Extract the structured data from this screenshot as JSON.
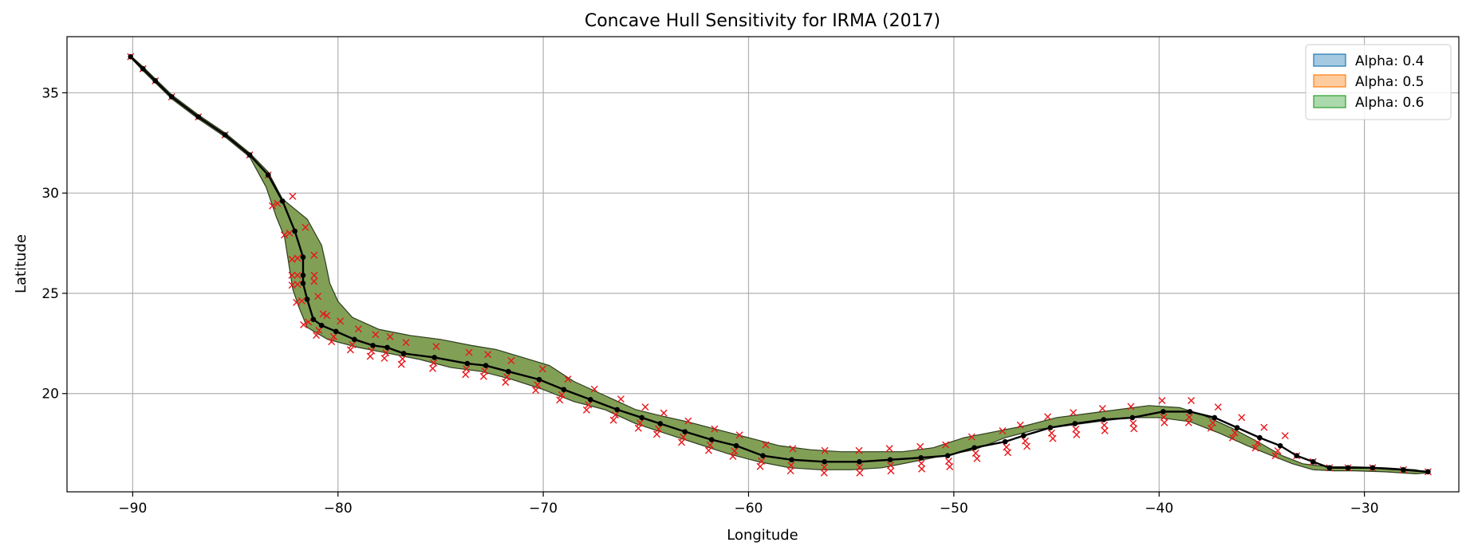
{
  "chart_data": {
    "type": "area",
    "title": "Concave Hull Sensitivity for IRMA (2017)",
    "xlabel": "Longitude",
    "ylabel": "Latitude",
    "xlim": [
      -93.2,
      -25.4
    ],
    "ylim": [
      15.1,
      37.8
    ],
    "xticks": [
      -90,
      -80,
      -70,
      -60,
      -50,
      -40,
      -30
    ],
    "yticks": [
      20,
      25,
      30,
      35
    ],
    "grid": true,
    "legend_placement": "top-right",
    "series": [
      {
        "name": "Alpha: 0.4",
        "color": "#1f77b4",
        "kind": "hull"
      },
      {
        "name": "Alpha: 0.5",
        "color": "#ff7f0e",
        "kind": "hull"
      },
      {
        "name": "Alpha: 0.6",
        "color": "#2ca02c",
        "kind": "hull"
      }
    ],
    "hull_fill_color": "#7f9f52",
    "track": {
      "color": "#000000",
      "x": [
        -90.1,
        -89.5,
        -88.9,
        -88.1,
        -86.8,
        -85.5,
        -84.3,
        -83.4,
        -82.7,
        -82.1,
        -81.7,
        -81.7,
        -81.7,
        -81.5,
        -81.2,
        -80.8,
        -80.1,
        -79.2,
        -78.3,
        -77.6,
        -76.8,
        -75.3,
        -73.7,
        -72.8,
        -71.7,
        -70.2,
        -69.0,
        -67.7,
        -66.4,
        -65.2,
        -64.3,
        -63.1,
        -61.8,
        -60.6,
        -59.3,
        -57.9,
        -56.3,
        -54.6,
        -53.1,
        -51.6,
        -50.3,
        -49.0,
        -47.5,
        -46.6,
        -45.3,
        -44.1,
        -42.7,
        -41.3,
        -39.8,
        -38.5,
        -37.3,
        -36.2,
        -35.1,
        -34.1,
        -33.3,
        -32.5,
        -31.7,
        -30.8,
        -29.6,
        -28.1,
        -26.9
      ],
      "y": [
        36.8,
        36.2,
        35.6,
        34.8,
        33.8,
        32.9,
        31.9,
        30.9,
        29.6,
        28.1,
        26.8,
        25.9,
        25.5,
        24.7,
        23.7,
        23.4,
        23.1,
        22.7,
        22.4,
        22.3,
        22.0,
        21.8,
        21.5,
        21.4,
        21.1,
        20.7,
        20.2,
        19.7,
        19.2,
        18.8,
        18.5,
        18.1,
        17.7,
        17.4,
        16.9,
        16.7,
        16.6,
        16.6,
        16.7,
        16.8,
        16.9,
        17.3,
        17.6,
        17.9,
        18.3,
        18.5,
        18.7,
        18.8,
        19.1,
        19.1,
        18.8,
        18.3,
        17.8,
        17.4,
        16.9,
        16.6,
        16.3,
        16.3,
        16.3,
        16.2,
        16.1
      ]
    },
    "hull": {
      "x": [
        -90.1,
        -89.5,
        -88.9,
        -88.1,
        -86.8,
        -85.5,
        -84.3,
        -83.4,
        -82.7,
        -81.5,
        -80.8,
        -80.6,
        -80.4,
        -80.0,
        -79.3,
        -78.0,
        -76.5,
        -75.0,
        -73.5,
        -72.3,
        -71.0,
        -69.7,
        -68.5,
        -67.0,
        -65.5,
        -64.3,
        -63.0,
        -61.5,
        -60.0,
        -58.5,
        -57.0,
        -55.5,
        -54.0,
        -52.5,
        -51.0,
        -49.5,
        -48.0,
        -46.5,
        -45.0,
        -43.5,
        -42.0,
        -40.5,
        -39.0,
        -37.8,
        -36.5,
        -35.2,
        -34.0,
        -33.0,
        -32.2,
        -31.5,
        -30.5,
        -29.0,
        -27.5,
        -26.9,
        -27.5,
        -29.0,
        -30.5,
        -31.5,
        -32.5,
        -33.5,
        -34.5,
        -35.7,
        -37.0,
        -38.5,
        -40.0,
        -41.5,
        -43.0,
        -44.5,
        -46.0,
        -47.5,
        -49.0,
        -50.5,
        -52.0,
        -53.5,
        -55.0,
        -56.5,
        -58.0,
        -59.5,
        -61.0,
        -62.5,
        -64.0,
        -65.5,
        -67.0,
        -68.5,
        -70.0,
        -71.5,
        -73.0,
        -74.5,
        -76.0,
        -77.5,
        -79.0,
        -80.5,
        -81.5,
        -81.9,
        -82.2,
        -82.4,
        -82.6,
        -83.0,
        -83.5,
        -84.3,
        -85.5,
        -86.8,
        -88.1,
        -88.9,
        -89.5,
        -90.1
      ],
      "y": [
        36.85,
        36.3,
        35.7,
        34.9,
        33.9,
        33.0,
        32.0,
        31.05,
        29.7,
        28.7,
        27.4,
        26.5,
        25.5,
        24.6,
        23.8,
        23.2,
        22.9,
        22.7,
        22.4,
        22.2,
        21.8,
        21.4,
        20.6,
        19.9,
        19.2,
        18.9,
        18.6,
        18.2,
        17.8,
        17.4,
        17.2,
        17.1,
        17.1,
        17.1,
        17.3,
        17.8,
        18.1,
        18.4,
        18.8,
        19.0,
        19.2,
        19.4,
        19.3,
        18.9,
        18.3,
        17.6,
        16.9,
        16.5,
        16.4,
        16.35,
        16.35,
        16.3,
        16.2,
        16.05,
        16.0,
        16.1,
        16.15,
        16.15,
        16.2,
        16.5,
        16.9,
        17.4,
        18.0,
        18.6,
        18.8,
        18.8,
        18.6,
        18.4,
        18.2,
        17.8,
        17.2,
        16.9,
        16.6,
        16.3,
        16.2,
        16.2,
        16.3,
        16.6,
        17.0,
        17.5,
        18.0,
        18.5,
        19.2,
        19.6,
        20.2,
        20.7,
        21.1,
        21.3,
        21.7,
        22.0,
        22.3,
        22.7,
        23.3,
        24.3,
        25.2,
        26.5,
        27.8,
        28.8,
        30.3,
        31.8,
        32.8,
        33.7,
        34.7,
        35.5,
        36.1,
        36.75
      ]
    }
  }
}
